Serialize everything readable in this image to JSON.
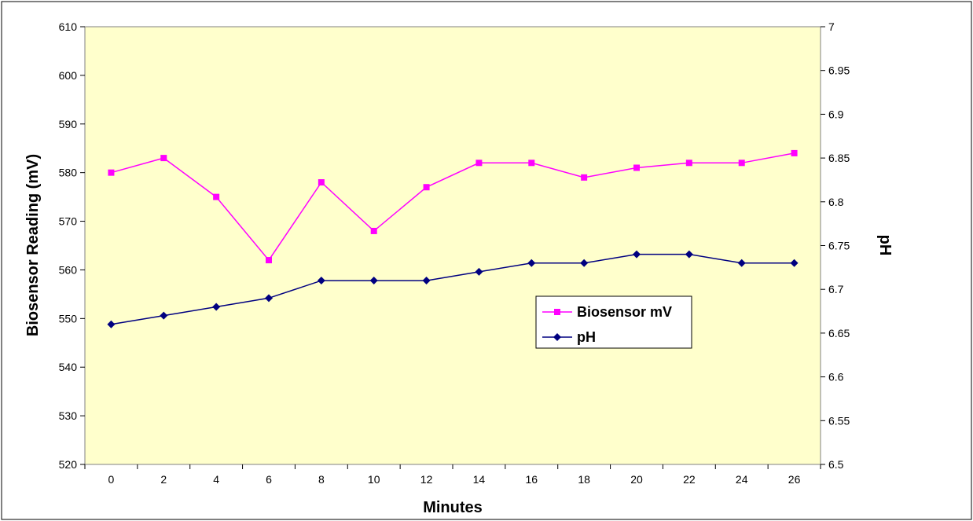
{
  "chart_data": {
    "type": "line",
    "x": [
      "0",
      "2",
      "4",
      "6",
      "8",
      "10",
      "12",
      "14",
      "16",
      "18",
      "20",
      "22",
      "24",
      "26"
    ],
    "xlabel": "Minutes",
    "ylabel": "Biosensor Reading (mV)",
    "y2label": "pH",
    "ylim": [
      520,
      610
    ],
    "y2lim": [
      6.5,
      7
    ],
    "y_ticks": [
      "520",
      "530",
      "540",
      "550",
      "560",
      "570",
      "580",
      "590",
      "600",
      "610"
    ],
    "y2_ticks": [
      "6.5",
      "6.55",
      "6.6",
      "6.65",
      "6.7",
      "6.75",
      "6.8",
      "6.85",
      "6.9",
      "6.95",
      "7"
    ],
    "grid": false,
    "legend_position": "right",
    "plot_background": "#ffffcc",
    "series": [
      {
        "name": "Biosensor mV",
        "axis": "left",
        "color": "#ff00ff",
        "marker": "square",
        "values": [
          580,
          583,
          575,
          562,
          578,
          568,
          577,
          582,
          582,
          579,
          581,
          582,
          582,
          584
        ]
      },
      {
        "name": "pH",
        "axis": "right",
        "color": "#000080",
        "marker": "diamond",
        "values": [
          6.66,
          6.67,
          6.68,
          6.69,
          6.71,
          6.71,
          6.71,
          6.72,
          6.73,
          6.73,
          6.74,
          6.74,
          6.73,
          6.73
        ]
      }
    ]
  }
}
